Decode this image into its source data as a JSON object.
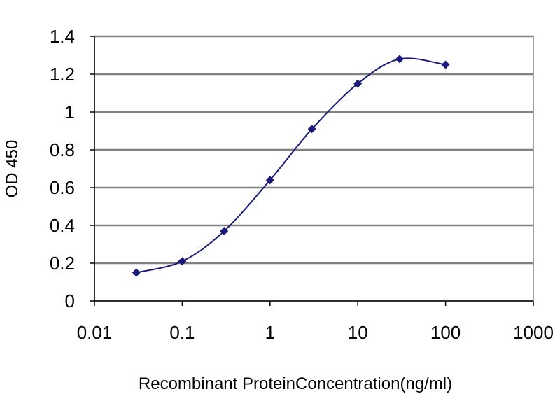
{
  "chart_data": {
    "type": "line",
    "title": "",
    "xlabel": "Recombinant ProteinConcentration(ng/ml)",
    "ylabel": "OD 450",
    "x_scale": "log",
    "xlim": [
      0.01,
      1000
    ],
    "ylim": [
      0,
      1.4
    ],
    "x_ticks": [
      "0.01",
      "0.1",
      "1",
      "10",
      "100",
      "1000"
    ],
    "y_ticks": [
      "0",
      "0.2",
      "0.4",
      "0.6",
      "0.8",
      "1",
      "1.2",
      "1.4"
    ],
    "grid": "horizontal",
    "legend": "none",
    "series": [
      {
        "x": [
          0.03,
          0.1,
          0.3,
          1,
          3,
          10,
          30,
          100
        ],
        "y": [
          0.15,
          0.21,
          0.37,
          0.64,
          0.91,
          1.15,
          1.28,
          1.25
        ],
        "color": "#1a1a7a",
        "marker": "diamond"
      }
    ],
    "colors": {
      "plot_background": "#ffffff",
      "gridline": "#808080",
      "axis": "#000000",
      "series": "#1a1a7a"
    }
  }
}
